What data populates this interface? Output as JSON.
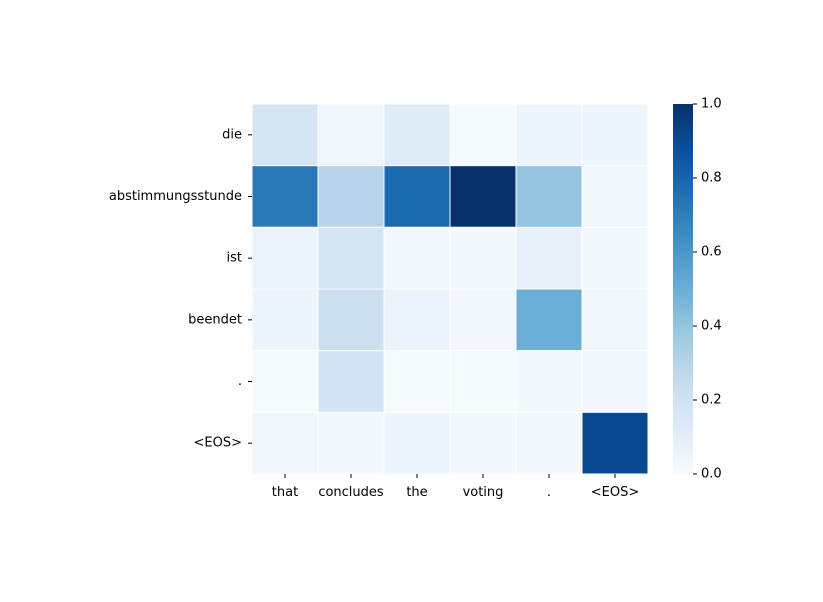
{
  "chart_data": {
    "type": "heatmap",
    "title": "",
    "xlabel": "",
    "ylabel": "",
    "x_labels": [
      "that",
      "concludes",
      "the",
      "voting",
      ".",
      "<EOS>"
    ],
    "y_labels": [
      "die",
      "abstimmungsstunde",
      "ist",
      "beendet",
      ".",
      "<EOS>"
    ],
    "values": [
      [
        0.17,
        0.04,
        0.12,
        0.01,
        0.05,
        0.05
      ],
      [
        0.72,
        0.3,
        0.78,
        1.0,
        0.4,
        0.03
      ],
      [
        0.06,
        0.18,
        0.02,
        0.02,
        0.08,
        0.02
      ],
      [
        0.05,
        0.22,
        0.06,
        0.02,
        0.5,
        0.03
      ],
      [
        0.01,
        0.19,
        0.01,
        0.01,
        0.02,
        0.03
      ],
      [
        0.04,
        0.02,
        0.05,
        0.02,
        0.03,
        0.9
      ]
    ],
    "colormap": "Blues",
    "vmin": 0.0,
    "vmax": 1.0,
    "colorbar_ticks": [
      "0.0",
      "0.2",
      "0.4",
      "0.6",
      "0.8",
      "1.0"
    ],
    "gridlines": "white",
    "legend": "colorbar-right"
  }
}
